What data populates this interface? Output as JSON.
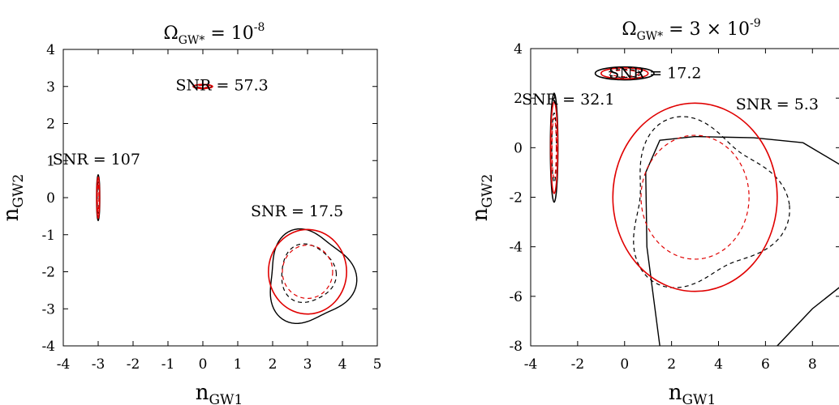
{
  "figure": {
    "panels": [
      {
        "title_main": "Ω",
        "title_sub": "GW*",
        "title_eq": " = 10",
        "title_sup": "-8"
      },
      {
        "title_main": "Ω",
        "title_sub": "GW*",
        "title_eq": " = 3 × 10",
        "title_sup": "-9"
      }
    ],
    "xlabel_main": "n",
    "xlabel_sub": "GW1",
    "ylabel_main": "n",
    "ylabel_sub": "GW2"
  },
  "chart_data": [
    {
      "type": "contour",
      "title": "Ω_GW* = 10^-8",
      "xlabel": "n_GW1",
      "ylabel": "n_GW2",
      "xlim": [
        -4,
        5
      ],
      "ylim": [
        -4,
        4
      ],
      "xticks": [
        "-4",
        "-3",
        "-2",
        "-1",
        "0",
        "1",
        "2",
        "3",
        "4",
        "5"
      ],
      "yticks": [
        "-4",
        "-3",
        "-2",
        "-1",
        "0",
        "1",
        "2",
        "3",
        "4"
      ],
      "colors": {
        "fisher": "#e00000",
        "mcmc": "#000000"
      },
      "regions": [
        {
          "label": "SNR = 107",
          "label_at": [
            -3.05,
            0.9
          ],
          "center": [
            -3,
            0
          ],
          "red_outer": [
            0.04,
            0.56
          ],
          "red_inner": [
            0.022,
            0.38
          ],
          "black_outer": [
            0.045,
            0.62
          ],
          "black_inner": [
            0.025,
            0.42
          ]
        },
        {
          "label": "SNR = 57.3",
          "label_at": [
            0.55,
            2.9
          ],
          "center": [
            0,
            3
          ],
          "red_outer": [
            0.28,
            0.055
          ],
          "red_inner": [
            0.17,
            0.034
          ],
          "black_outer": [
            0.26,
            0.05
          ],
          "black_inner": [
            0.16,
            0.03
          ]
        },
        {
          "label": "SNR = 17.5",
          "label_at": [
            2.7,
            -0.5
          ],
          "center": [
            3,
            -2
          ],
          "red_outer": [
            1.12,
            1.14
          ],
          "red_inner": [
            0.72,
            0.72
          ],
          "black_outer": {
            "center": [
              3.05,
              -2.15
            ],
            "radius": 1.22,
            "skew": 0.12
          },
          "black_inner": {
            "center": [
              3.0,
              -2.05
            ],
            "radius": 0.78,
            "skew": 0.06
          }
        }
      ]
    },
    {
      "type": "contour",
      "title": "Ω_GW* = 3 × 10^-9",
      "xlabel": "n_GW1",
      "ylabel": "n_GW2",
      "xlim": [
        -4,
        9.2
      ],
      "ylim": [
        -8,
        4
      ],
      "xticks": [
        "-4",
        "-2",
        "0",
        "2",
        "4",
        "6",
        "8"
      ],
      "yticks": [
        "-8",
        "-6",
        "-4",
        "-2",
        "0",
        "2",
        "4"
      ],
      "colors": {
        "fisher": "#e00000",
        "mcmc": "#000000"
      },
      "regions": [
        {
          "label": "SNR = 32.1",
          "label_at": [
            -2.4,
            1.75
          ],
          "center": [
            -3,
            0
          ],
          "red_outer": [
            0.15,
            1.85
          ],
          "red_inner": [
            0.09,
            1.2
          ],
          "black_outer": [
            0.16,
            2.2
          ],
          "black_inner": [
            0.1,
            1.4
          ]
        },
        {
          "label": "SNR = 17.2",
          "label_at": [
            1.3,
            2.8
          ],
          "center": [
            0,
            3
          ],
          "red_outer": [
            1.0,
            0.22
          ],
          "red_inner": [
            0.6,
            0.13
          ],
          "black_outer": [
            1.25,
            0.26
          ],
          "black_inner": [
            0.7,
            0.16
          ]
        },
        {
          "label": "SNR = 5.3",
          "label_at": [
            6.5,
            1.55
          ],
          "center": [
            3,
            -2
          ],
          "red_outer": [
            3.5,
            3.8
          ],
          "red_inner": [
            2.3,
            2.5
          ],
          "black_inner": {
            "center": [
              3.3,
              -2.3
            ],
            "radius": 3.2,
            "skew": 0.17
          },
          "black_outer_open": [
            [
              1.5,
              -8
            ],
            [
              0.95,
              -4
            ],
            [
              0.9,
              -1
            ],
            [
              1.5,
              0.3
            ],
            [
              3.0,
              0.45
            ],
            [
              5.5,
              0.4
            ],
            [
              7.6,
              0.2
            ],
            [
              9.2,
              -0.7
            ]
          ],
          "black_outer_corner": [
            [
              6.5,
              -8
            ],
            [
              8.0,
              -6.5
            ],
            [
              9.2,
              -5.6
            ]
          ]
        }
      ]
    }
  ]
}
